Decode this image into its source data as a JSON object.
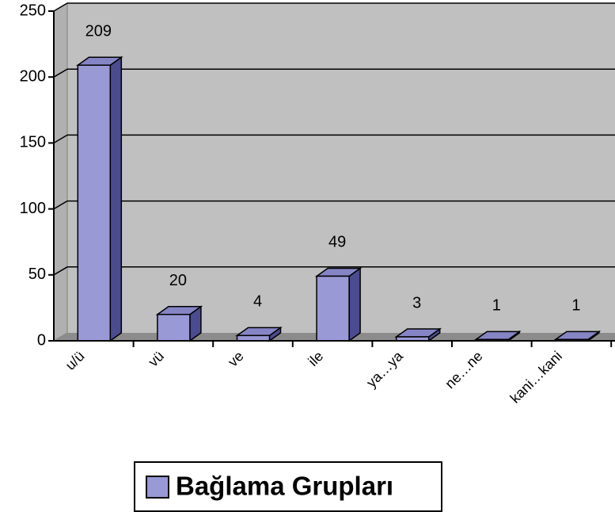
{
  "chart_data": {
    "type": "bar3d",
    "categories": [
      "u/ü",
      "vü",
      "ve",
      "ile",
      "ya…ya",
      "ne…ne",
      "kani…kani"
    ],
    "series": [
      {
        "name": "Bağlama Grupları",
        "color": "#9999d6",
        "values": [
          209,
          20,
          4,
          49,
          3,
          1,
          1
        ]
      }
    ],
    "ylim": [
      0,
      250
    ],
    "yticks": [
      0,
      50,
      100,
      150,
      200,
      250
    ],
    "grid": true,
    "legend": "bottom"
  }
}
